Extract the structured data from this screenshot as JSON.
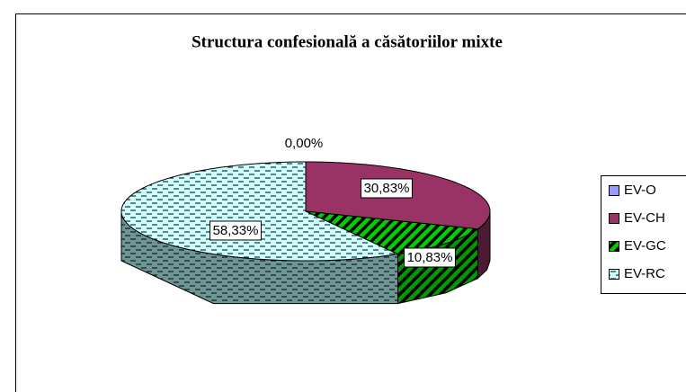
{
  "chart_data": {
    "type": "pie3d",
    "title": "Structura confesională a căsătoriilor mixte",
    "categories": [
      "EV-O",
      "EV-CH",
      "EV-GC",
      "EV-RC"
    ],
    "values": [
      0,
      30.83,
      10.83,
      58.33
    ],
    "value_labels": [
      "0,00%",
      "30,83%",
      "10,83%",
      "58,33%"
    ],
    "colors": [
      "#9999ff",
      "#993366",
      "#00cc00",
      "#ccffff"
    ],
    "legend": "right"
  }
}
